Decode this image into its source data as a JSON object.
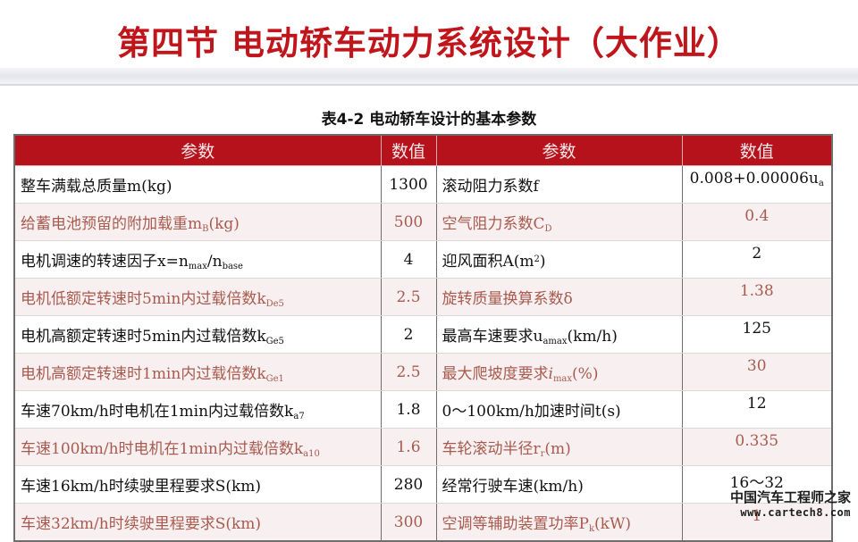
{
  "page_title": "第四节  电动轿车动力系统设计（大作业）",
  "table_caption": "表4-2   电动轿车设计的基本参数",
  "headers": [
    "参数",
    "数值",
    "参数",
    "数值"
  ],
  "rows": [
    {
      "l_label": "整车满载总质量m(kg)",
      "l_value": "1300",
      "r_label": "滚动阻力系数f",
      "r_value_main": "0.008+0.00006u",
      "r_value_sub": "a"
    },
    {
      "l_label_main": "给蓄电池预留的附加载重m",
      "l_label_sub": "B",
      "l_label_tail": "(kg)",
      "l_value": "500",
      "r_label_main": "空气阻力系数C",
      "r_label_sub": "D",
      "r_value": "0.4"
    },
    {
      "l_label_main": "电机调速的转速因子x=n",
      "l_label_sub1": "max",
      "l_label_mid": "/n",
      "l_label_sub2": "base",
      "l_value": "4",
      "r_label_main": "迎风面积A(m",
      "r_label_sup": "2",
      "r_label_tail": ")",
      "r_value": "2"
    },
    {
      "l_label_main": "电机低额定转速时5min内过载倍数k",
      "l_label_sub": "De5",
      "l_value": "2.5",
      "r_label": "旋转质量换算系数δ",
      "r_value": "1.38"
    },
    {
      "l_label_main": "电机高额定转速时5min内过载倍数k",
      "l_label_sub": "Ge5",
      "l_value": "2",
      "r_label_main": "最高车速要求u",
      "r_label_sub": "amax",
      "r_label_tail": "(km/h)",
      "r_value": "125"
    },
    {
      "l_label_main": "电机高额定转速时1min内过载倍数k",
      "l_label_sub": "Ge1",
      "l_value": "2.5",
      "r_label_main": "最大爬坡度要求",
      "r_label_italic": "i",
      "r_label_sub": "max",
      "r_label_tail": "(%)",
      "r_value": "30"
    },
    {
      "l_label_main": "车速70km/h时电机在1min内过载倍数k",
      "l_label_sub": "a7",
      "l_value": "1.8",
      "r_label": " 0～100km/h加速时间t(s)",
      "r_value": "12"
    },
    {
      "l_label_main": "车速100km/h时电机在1min内过载倍数k",
      "l_label_sub": "a10",
      "l_value": "1.6",
      "r_label_main": "车轮滚动半径r",
      "r_label_sub": "r",
      "r_label_tail": "(m)",
      "r_value": "0.335"
    },
    {
      "l_label": "车速16km/h时续驶里程要求S(km)",
      "l_value": "280",
      "r_label": "经常行驶车速(km/h)",
      "r_value": "16～32"
    },
    {
      "l_label": "车速32km/h时续驶里程要求S(km)",
      "l_value": "300",
      "r_label_main": "空调等辅助装置功率P",
      "r_label_sub": "k",
      "r_label_tail": "(kW)",
      "r_value": "1"
    }
  ],
  "watermark": {
    "cn": "中国汽车工程师之家",
    "url": "www.cartech8.com"
  }
}
